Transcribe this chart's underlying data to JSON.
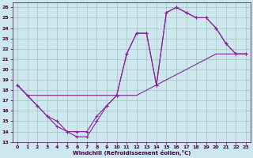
{
  "xlabel": "Windchill (Refroidissement éolien,°C)",
  "bg_color": "#cce8ee",
  "line_color": "#882299",
  "xlim": [
    -0.5,
    23.5
  ],
  "ylim": [
    13,
    26.5
  ],
  "xticks": [
    0,
    1,
    2,
    3,
    4,
    5,
    6,
    7,
    8,
    9,
    10,
    11,
    12,
    13,
    14,
    15,
    16,
    17,
    18,
    19,
    20,
    21,
    22,
    23
  ],
  "yticks": [
    13,
    14,
    15,
    16,
    17,
    18,
    19,
    20,
    21,
    22,
    23,
    24,
    25,
    26
  ],
  "curve1_x": [
    0,
    1,
    2,
    3,
    4,
    5,
    6,
    7,
    8,
    9,
    10,
    11,
    12,
    13,
    14,
    15,
    16,
    17,
    18,
    19,
    20,
    21,
    22,
    23
  ],
  "curve1_y": [
    18.5,
    17.5,
    16.5,
    15.5,
    15.0,
    14.0,
    13.5,
    13.5,
    15.0,
    16.5,
    17.5,
    21.5,
    23.5,
    23.5,
    18.5,
    25.5,
    26.0,
    25.5,
    25.0,
    25.0,
    24.0,
    22.5,
    21.5,
    21.5
  ],
  "curve2_x": [
    0,
    1,
    2,
    3,
    4,
    5,
    6,
    7,
    8,
    9,
    10,
    11,
    12,
    13,
    14,
    15,
    16,
    17,
    18,
    19,
    20,
    21,
    22,
    23
  ],
  "curve2_y": [
    18.5,
    17.5,
    17.5,
    17.5,
    17.5,
    17.5,
    17.5,
    17.5,
    17.5,
    17.5,
    17.5,
    17.5,
    17.5,
    18.0,
    18.5,
    19.0,
    19.5,
    20.0,
    20.5,
    21.0,
    21.5,
    21.5,
    21.5,
    21.5
  ],
  "curve3_x": [
    0,
    2,
    3,
    4,
    5,
    6,
    7,
    8,
    9,
    10,
    11,
    12,
    13,
    14,
    15,
    16,
    17,
    18,
    19,
    20,
    21,
    22,
    23
  ],
  "curve3_y": [
    18.5,
    16.5,
    15.5,
    14.5,
    14.0,
    14.0,
    14.0,
    15.5,
    16.5,
    17.5,
    21.5,
    23.5,
    23.5,
    18.5,
    25.5,
    26.0,
    25.5,
    25.0,
    25.0,
    24.0,
    22.5,
    21.5,
    21.5
  ]
}
